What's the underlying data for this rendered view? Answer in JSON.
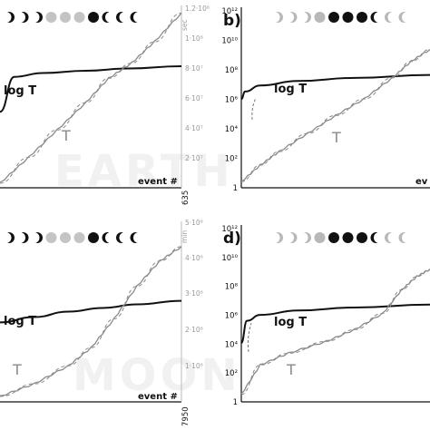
{
  "chart_data": [
    {
      "panel": "a",
      "type": "line",
      "watermark": "EARTH",
      "moon_phases": [
        "waxing-crescent",
        "waxing-crescent",
        "first-quarter",
        "waxing-gibbous",
        "full",
        "full",
        "waning-gibbous",
        "last-quarter",
        "waning-crescent",
        "waning-crescent"
      ],
      "ylabel_right": "sec",
      "right_ticks": [
        "1.2·10⁸",
        "1·10⁸",
        "8·10⁷",
        "6·10⁷",
        "4·10⁷",
        "2·10⁷"
      ],
      "ylim": [
        0,
        120000000
      ],
      "x_end_label": "635",
      "xlabel": "event #",
      "series": [
        {
          "name": "log T",
          "values": [
            [
              0,
              50000000.0
            ],
            [
              50,
              73000000.0
            ],
            [
              150,
              75500000.0
            ],
            [
              300,
              77000000.0
            ],
            [
              450,
              78500000.0
            ],
            [
              635,
              80000000.0
            ]
          ]
        },
        {
          "name": "T",
          "values": [
            [
              0,
              3000000.0
            ],
            [
              100,
              20000000.0
            ],
            [
              200,
              38000000.0
            ],
            [
              300,
              56000000.0
            ],
            [
              380,
              72000000.0
            ],
            [
              460,
              82000000.0
            ],
            [
              540,
              96000000.0
            ],
            [
              635,
              115000000.0
            ]
          ]
        }
      ]
    },
    {
      "panel": "b",
      "type": "line",
      "watermark": "",
      "moon_phases": [
        "waxing-crescent",
        "waxing-crescent",
        "first-quarter",
        "waxing-gibbous",
        "full",
        "full",
        "waning-gibbous",
        "last-quarter",
        "waning-crescent",
        "waning-crescent"
      ],
      "left_ticks": [
        "10¹²",
        "10¹⁰",
        "10⁸",
        "10⁶",
        "10⁴",
        "10²",
        "1"
      ],
      "ylim": [
        0,
        12
      ],
      "x_end_label": "ev",
      "series": [
        {
          "name": "log T",
          "values": [
            [
              0,
              5.9
            ],
            [
              0.02,
              6.4
            ],
            [
              0.1,
              6.8
            ],
            [
              0.3,
              7.1
            ],
            [
              0.6,
              7.3
            ],
            [
              1.0,
              7.5
            ]
          ]
        },
        {
          "name": "T",
          "values": [
            [
              0,
              0.4
            ],
            [
              0.1,
              1.5
            ],
            [
              0.2,
              2.4
            ],
            [
              0.35,
              3.6
            ],
            [
              0.5,
              4.8
            ],
            [
              0.65,
              5.9
            ],
            [
              0.8,
              7.3
            ],
            [
              0.9,
              8.4
            ],
            [
              1.0,
              9.2
            ]
          ]
        }
      ]
    },
    {
      "panel": "c",
      "type": "line",
      "watermark": "MOON",
      "moon_phases": [
        "waxing-crescent",
        "waxing-crescent",
        "first-quarter",
        "waxing-gibbous",
        "full",
        "full",
        "waning-gibbous",
        "last-quarter",
        "waning-crescent",
        "waning-crescent"
      ],
      "ylabel_right": "min",
      "right_ticks": [
        "5·10⁶",
        "4·10⁶",
        "3·10⁶",
        "2·10⁶",
        "1·10⁶"
      ],
      "ylim": [
        0,
        5000000
      ],
      "x_end_label": "7950",
      "xlabel": "event #",
      "series": [
        {
          "name": "log T",
          "values": [
            [
              0,
              2200000.0
            ],
            [
              1500,
              2350000.0
            ],
            [
              3000,
              2500000.0
            ],
            [
              4500,
              2600000.0
            ],
            [
              6000,
              2700000.0
            ],
            [
              7950,
              2800000.0
            ]
          ]
        },
        {
          "name": "T",
          "values": [
            [
              0,
              150000.0
            ],
            [
              1500,
              500000.0
            ],
            [
              3000,
              1000000.0
            ],
            [
              4000,
              1500000.0
            ],
            [
              5000,
              2300000.0
            ],
            [
              6000,
              3200000.0
            ],
            [
              7000,
              3900000.0
            ],
            [
              7950,
              4300000.0
            ]
          ]
        }
      ]
    },
    {
      "panel": "d",
      "type": "line",
      "watermark": "",
      "moon_phases": [
        "waxing-crescent",
        "waxing-crescent",
        "first-quarter",
        "waxing-gibbous",
        "full",
        "full",
        "waning-gibbous",
        "last-quarter",
        "waning-crescent",
        "waning-crescent"
      ],
      "left_ticks": [
        "10¹²",
        "10¹⁰",
        "10⁸",
        "10⁶",
        "10⁴",
        "10²",
        "1"
      ],
      "ylim": [
        0,
        12
      ],
      "x_end_label": "",
      "series": [
        {
          "name": "log T",
          "values": [
            [
              0,
              4.0
            ],
            [
              0.03,
              5.5
            ],
            [
              0.1,
              5.9
            ],
            [
              0.3,
              6.2
            ],
            [
              0.6,
              6.4
            ],
            [
              1.0,
              6.6
            ]
          ]
        },
        {
          "name": "T",
          "values": [
            [
              0,
              0.5
            ],
            [
              0.1,
              2.5
            ],
            [
              0.25,
              3.3
            ],
            [
              0.45,
              4.1
            ],
            [
              0.6,
              4.9
            ],
            [
              0.75,
              6.0
            ],
            [
              0.85,
              7.6
            ],
            [
              0.93,
              8.5
            ],
            [
              1.0,
              9.0
            ]
          ]
        }
      ]
    }
  ],
  "labels": {
    "panel_b": "b)",
    "panel_d": "d)",
    "log_t": "log T",
    "t": "T",
    "event": "event #",
    "sec": "sec",
    "min": "min"
  }
}
